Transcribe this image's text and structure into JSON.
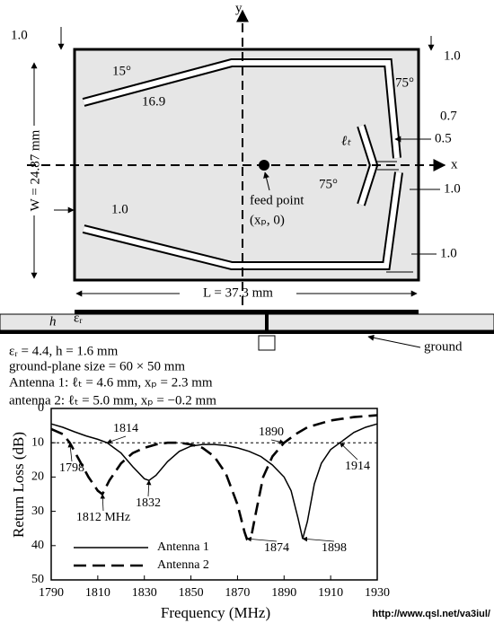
{
  "diagram": {
    "axis_y": "y",
    "axis_x": "x",
    "dim_top_left": "1.0",
    "dim_top_right": "1.0",
    "angle_top_left": "15°",
    "angle_top_right": "75°",
    "arm_length": "16.9",
    "dim_gap": "0.7",
    "dim_width": "0.5",
    "stub_length": "ℓₜ",
    "angle_stub": "75°",
    "dim_mid_right": "1.0",
    "feed_label": "feed point",
    "feed_coords": "(xₚ, 0)",
    "width_label": "W = 24.87 mm",
    "dim_left": "1.0",
    "dim_bottom_right": "1.0",
    "length_label": "L = 37.3 mm",
    "substrate_h": "h",
    "substrate_eps": "εᵣ",
    "ground_label": "ground"
  },
  "parameters": [
    "εᵣ = 4.4, h = 1.6 mm",
    "ground-plane size = 60 × 50 mm",
    "Antenna 1: ℓₜ = 4.6 mm, xₚ = 2.3 mm",
    "antenna 2: ℓₜ = 5.0 mm, xₚ = −0.2 mm"
  ],
  "chart_data": {
    "type": "line",
    "xlabel": "Frequency (MHz)",
    "ylabel": "Return Loss (dB)",
    "xlim": [
      1790,
      1930
    ],
    "xticks": [
      1790,
      1810,
      1830,
      1850,
      1870,
      1890,
      1910,
      1930
    ],
    "ylim": [
      0,
      50
    ],
    "y_inverted": true,
    "yticks": [
      0,
      10,
      20,
      30,
      40,
      50
    ],
    "reference_line": 10,
    "series": [
      {
        "name": "Antenna 1",
        "color": "#000000",
        "dash": false,
        "x": [
          1790,
          1795,
          1800,
          1805,
          1810,
          1814,
          1820,
          1825,
          1830,
          1832,
          1835,
          1840,
          1845,
          1850,
          1855,
          1860,
          1865,
          1870,
          1875,
          1880,
          1885,
          1890,
          1893,
          1896,
          1898,
          1900,
          1903,
          1906,
          1910,
          1914,
          1920,
          1925,
          1930
        ],
        "values": [
          4.5,
          5.5,
          6.8,
          8,
          9,
          10,
          13,
          17,
          20.5,
          21,
          19.5,
          15.5,
          12.5,
          11,
          10.5,
          10.5,
          10.8,
          11.5,
          12.5,
          14,
          16.5,
          20,
          24,
          32,
          38,
          33,
          22,
          16,
          12,
          10,
          7,
          5.5,
          4.5
        ]
      },
      {
        "name": "Antenna 2",
        "color": "#000000",
        "dash": true,
        "x": [
          1790,
          1795,
          1798,
          1802,
          1806,
          1810,
          1812,
          1815,
          1820,
          1825,
          1830,
          1835,
          1840,
          1845,
          1850,
          1855,
          1860,
          1865,
          1870,
          1873,
          1874,
          1876,
          1878,
          1881,
          1885,
          1890,
          1895,
          1900,
          1910,
          1920,
          1930
        ],
        "values": [
          6,
          7.5,
          10,
          15,
          20,
          24,
          25,
          21,
          16,
          13,
          11.5,
          10.5,
          10,
          10,
          10.5,
          11.5,
          14,
          19,
          28,
          36,
          38,
          37,
          30,
          20,
          14,
          10,
          7.5,
          5.5,
          3.5,
          2.5,
          2
        ]
      }
    ],
    "annotations": [
      {
        "label": "1814",
        "x": 1814,
        "y": 10
      },
      {
        "label": "1798",
        "x": 1798,
        "y": 10
      },
      {
        "label": "1812 MHz",
        "x": 1812,
        "y": 25
      },
      {
        "label": "1832",
        "x": 1832,
        "y": 21
      },
      {
        "label": "1890",
        "x": 1890,
        "y": 10
      },
      {
        "label": "1874",
        "x": 1874,
        "y": 38
      },
      {
        "label": "1898",
        "x": 1898,
        "y": 38
      },
      {
        "label": "1914",
        "x": 1914,
        "y": 10
      }
    ]
  },
  "footer": "http://www.qsl.net/va3iul/"
}
